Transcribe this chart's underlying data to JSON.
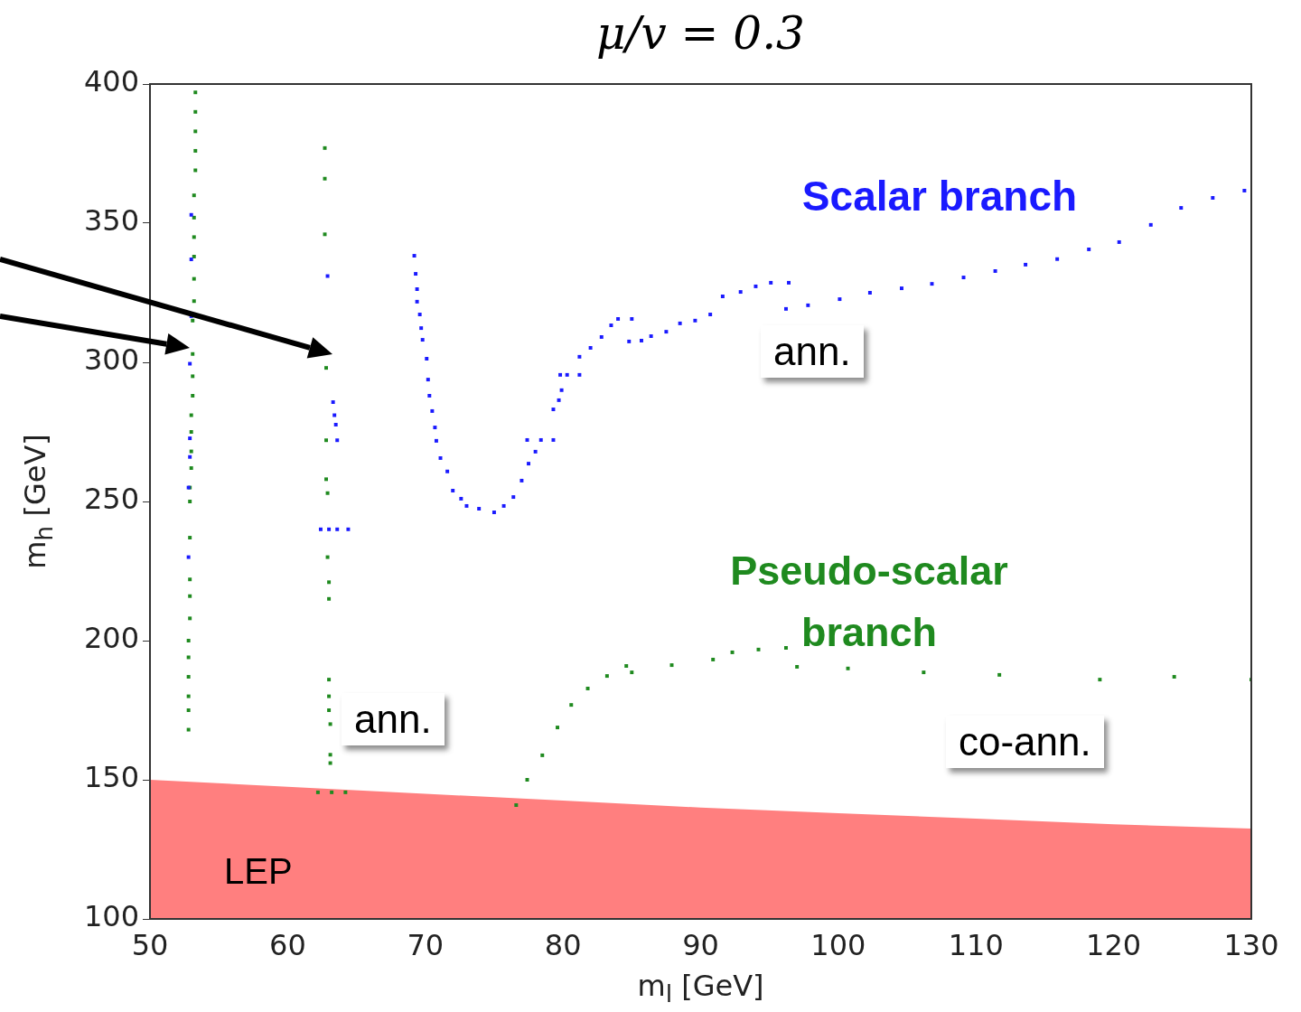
{
  "chart_data": {
    "type": "scatter",
    "title": "μ/v = 0.3",
    "xlabel": "m$_{l}$ [GeV]",
    "ylabel": "m$_{h}$ [GeV]",
    "xlim": [
      50,
      130
    ],
    "xticks": [
      50,
      60,
      70,
      80,
      90,
      100,
      110,
      120,
      130
    ],
    "ylim": [
      100,
      400
    ],
    "yticks": [
      100,
      150,
      200,
      250,
      300,
      350,
      400
    ],
    "grid": false,
    "legend": false,
    "annotations": [
      "Scalar branch",
      "Pseudo-scalar branch",
      "ann.",
      "ann.",
      "co-ann.",
      "LEP"
    ],
    "series": [
      {
        "marker": "square",
        "color": "#1a1aff",
        "x": [
          53,
          53,
          53,
          52.9,
          52.9,
          52.9,
          52.8,
          52.8,
          62.9,
          63.3,
          63.4,
          63.5,
          63.6,
          62.4,
          63,
          63.6,
          64.4,
          69.2,
          69.3,
          69.4,
          69.4,
          69.6,
          69.7,
          69.8,
          70.1,
          70.2,
          70.3,
          70.5,
          70.7,
          70.8,
          71.1,
          71.6,
          72,
          72.6,
          73,
          73.9,
          75,
          75.7,
          76.4,
          77,
          77.5,
          78,
          78.4,
          77.4,
          79.3,
          79.3,
          79.7,
          79.9,
          80.3,
          79.8,
          81.2,
          81.2,
          82,
          82.8,
          83.5,
          84,
          85,
          84.8,
          85.7,
          86.4,
          87.5,
          88.5,
          89.6,
          90.7,
          91.6,
          92.9,
          94,
          95.1,
          96.4,
          96.2,
          97.8,
          100.1,
          102.3,
          104.6,
          106.8,
          109.1,
          111.4,
          113.6,
          115.9,
          118.2,
          120.4,
          122.7,
          124.9,
          127.2,
          129.5
        ],
        "values": [
          353,
          337,
          316.6,
          299.5,
          272.7,
          266,
          255,
          230,
          331,
          285.7,
          281,
          277.6,
          272,
          240,
          240,
          240,
          240,
          338.3,
          331.8,
          326.3,
          321.8,
          317.2,
          312.3,
          308.1,
          301.3,
          293.8,
          288,
          282.5,
          276.6,
          271.8,
          265.6,
          260.8,
          253.9,
          251,
          248.4,
          247.4,
          246.1,
          248.4,
          251.6,
          257.5,
          263.6,
          267.9,
          272.1,
          272.1,
          272.1,
          283.1,
          286.4,
          290,
          295.5,
          295.5,
          295.5,
          302,
          305.2,
          309.1,
          313.3,
          315.6,
          315.6,
          307.5,
          307.8,
          309.4,
          311,
          314,
          315,
          317.2,
          323.7,
          325.3,
          327.3,
          328.6,
          328.6,
          319.2,
          320.5,
          322.7,
          325,
          326.6,
          328.2,
          330.5,
          332.8,
          335.1,
          337.1,
          340.6,
          343.2,
          349.4,
          355.5,
          359.1,
          361.7
        ]
      },
      {
        "marker": "square",
        "color": "#1f8a1f",
        "x": [
          53.3,
          53.3,
          53.3,
          53.3,
          53.3,
          53.2,
          53.2,
          53.2,
          53.2,
          53.2,
          53.2,
          53.1,
          53.1,
          53.1,
          53.1,
          53,
          53,
          53,
          53,
          52.9,
          52.9,
          52.9,
          52.9,
          52.9,
          52.9,
          52.8,
          52.8,
          52.8,
          52.8,
          52.8,
          52.8,
          62.7,
          62.7,
          62.7,
          62.8,
          62.8,
          62.8,
          62.9,
          62.9,
          63,
          63,
          63,
          63,
          63,
          63.1,
          63.1,
          63.1,
          62.2,
          63.2,
          64.2,
          76.6,
          77.4,
          78.5,
          79.6,
          80.6,
          81.8,
          83.2,
          84.6,
          85,
          87.9,
          90.9,
          92.3,
          94.2,
          96.2,
          97,
          100.7,
          106.2,
          111.7,
          119,
          124.4,
          130
        ],
        "values": [
          397,
          390,
          383,
          376,
          369,
          360,
          352,
          345,
          338,
          330,
          322,
          315,
          303,
          295,
          288,
          281,
          275,
          268,
          262,
          255,
          250,
          237,
          222,
          216,
          208,
          200,
          194,
          187,
          180,
          175,
          168,
          377,
          366,
          346,
          298,
          272,
          258,
          253,
          230,
          221,
          215,
          186,
          180,
          175,
          170,
          159,
          156,
          145.5,
          145.5,
          145.5,
          140.9,
          150,
          158.8,
          168.8,
          176.9,
          182.8,
          187.3,
          190.9,
          188.6,
          191.2,
          193.2,
          195.8,
          196.8,
          197.4,
          190.6,
          190,
          188.6,
          187.7,
          186,
          187,
          186
        ]
      },
      {
        "type": "area",
        "color": "#ff7f7f",
        "x": [
          50,
          60,
          70,
          80,
          90,
          100,
          110,
          120,
          130
        ],
        "values": [
          150,
          147.5,
          145,
          142.5,
          140,
          138,
          136,
          134,
          132.5
        ]
      }
    ]
  }
}
